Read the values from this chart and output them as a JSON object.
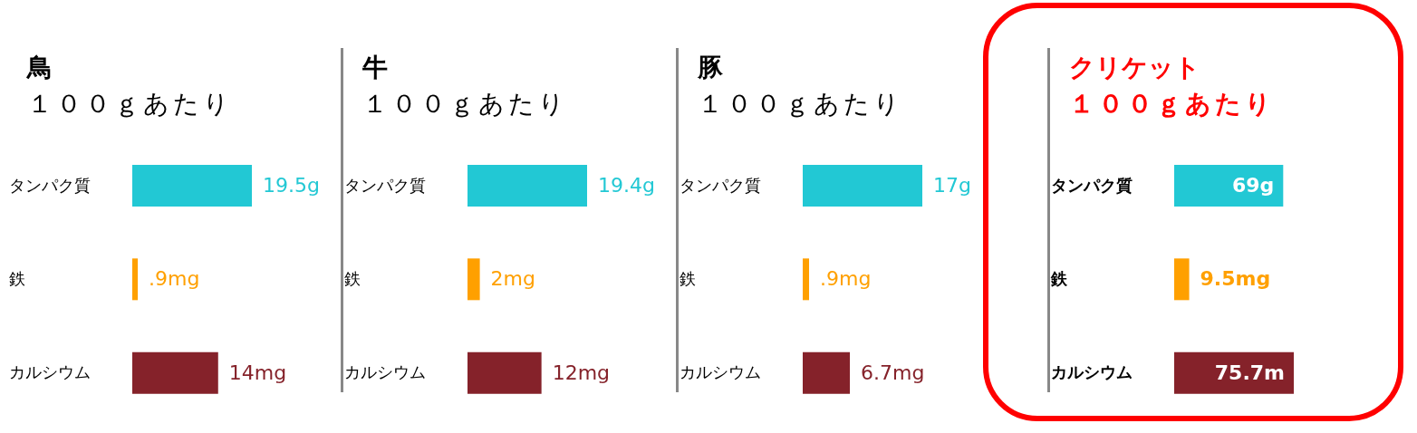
{
  "chart_data": [
    {
      "type": "bar",
      "orientation": "horizontal",
      "title": "鳥",
      "subtitle": "１００ｇあたり",
      "categories": [
        "タンパク質",
        "鉄",
        "カルシウム"
      ],
      "values": [
        19.5,
        0.9,
        14
      ],
      "colors": [
        "#22c8d4",
        "#ffa000",
        "#85222a"
      ],
      "value_labels": [
        "19.5g",
        ".9mg",
        "14mg"
      ],
      "grid": false,
      "legend": false
    },
    {
      "type": "bar",
      "orientation": "horizontal",
      "title": "牛",
      "subtitle": "１００ｇあたり",
      "categories": [
        "タンパク質",
        "鉄",
        "カルシウム"
      ],
      "values": [
        19.4,
        2,
        12
      ],
      "colors": [
        "#22c8d4",
        "#ffa000",
        "#85222a"
      ],
      "value_labels": [
        "19.4g",
        "2mg",
        "12mg"
      ],
      "grid": false,
      "legend": false
    },
    {
      "type": "bar",
      "orientation": "horizontal",
      "title": "豚",
      "subtitle": "１００ｇあたり",
      "categories": [
        "タンパク質",
        "鉄",
        "カルシウム"
      ],
      "values": [
        17,
        0.9,
        6.7
      ],
      "colors": [
        "#22c8d4",
        "#ffa000",
        "#85222a"
      ],
      "value_labels": [
        "17g",
        ".9mg",
        "6.7mg"
      ],
      "grid": false,
      "legend": false
    },
    {
      "type": "bar",
      "orientation": "horizontal",
      "title": "クリケット",
      "subtitle": "１００ｇあたり",
      "categories": [
        "タンパク質",
        "鉄",
        "カルシウム"
      ],
      "values": [
        69,
        9.5,
        75.7
      ],
      "colors": [
        "#22c8d4",
        "#ffa000",
        "#85222a"
      ],
      "value_labels": [
        "69g",
        "9.5mg",
        "75.7m"
      ],
      "grid": false,
      "legend": false
    }
  ]
}
